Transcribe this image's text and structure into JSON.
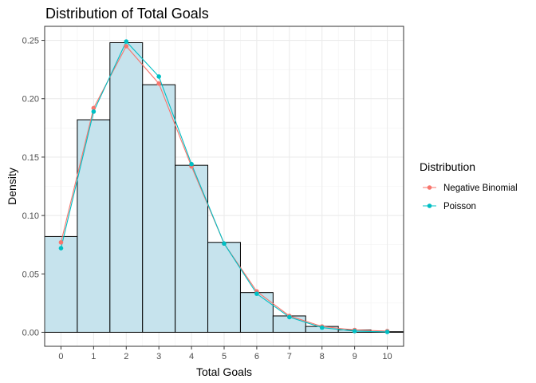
{
  "chart_data": {
    "type": "bar",
    "title": "Distribution of Total Goals",
    "xlabel": "Total Goals",
    "ylabel": "Density",
    "x_ticks": [
      "0",
      "1",
      "2",
      "3",
      "4",
      "5",
      "6",
      "7",
      "8",
      "9",
      "10"
    ],
    "y_ticks": [
      "0.00",
      "0.05",
      "0.10",
      "0.15",
      "0.20",
      "0.25"
    ],
    "xlim": [
      -0.5,
      10.5
    ],
    "ylim": [
      -0.012,
      0.262
    ],
    "grid": true,
    "histogram": {
      "x": [
        0,
        1,
        2,
        3,
        4,
        5,
        6,
        7,
        8,
        9,
        10
      ],
      "density": [
        0.082,
        0.182,
        0.248,
        0.212,
        0.143,
        0.077,
        0.034,
        0.014,
        0.005,
        0.002,
        0.0005
      ],
      "fill": "#c6e3ed",
      "stroke": "#000000"
    },
    "legend": {
      "title": "Distribution",
      "position": "right"
    },
    "series": [
      {
        "name": "Negative Binomial",
        "color": "#f8766d",
        "x": [
          0,
          1,
          2,
          3,
          4,
          5,
          6,
          7,
          8,
          9,
          10
        ],
        "values": [
          0.077,
          0.192,
          0.245,
          0.213,
          0.142,
          0.076,
          0.035,
          0.014,
          0.005,
          0.002,
          0.001
        ]
      },
      {
        "name": "Poisson",
        "color": "#00bfc4",
        "x": [
          0,
          1,
          2,
          3,
          4,
          5,
          6,
          7,
          8,
          9,
          10
        ],
        "values": [
          0.072,
          0.189,
          0.249,
          0.219,
          0.144,
          0.076,
          0.033,
          0.013,
          0.004,
          0.001,
          0.0003
        ]
      }
    ]
  }
}
